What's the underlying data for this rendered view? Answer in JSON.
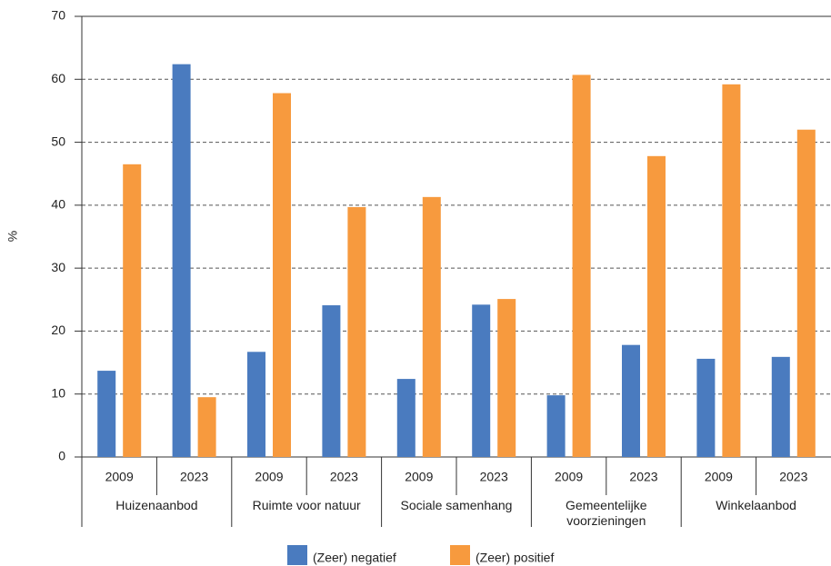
{
  "chart_data": {
    "type": "grouped_bar",
    "y_label": "%",
    "categories": [
      "2009",
      "2023",
      "2009",
      "2023",
      "2009",
      "2023",
      "2009",
      "2023",
      "2009",
      "2023"
    ],
    "groups": [
      "Huizenaanbod",
      "Ruimte voor natuur",
      "Sociale samenhang",
      "Gemeentelijke voorzieningen",
      "Winkelaanbod"
    ],
    "series": [
      {
        "name": "(Zeer) negatief",
        "color": "#4a7bbf",
        "values": [
          13.7,
          62.4,
          16.7,
          24.1,
          12.4,
          24.2,
          9.8,
          17.8,
          15.6,
          15.9
        ]
      },
      {
        "name": "(Zeer) positief",
        "color": "#f79a3e",
        "values": [
          46.5,
          9.5,
          57.8,
          39.7,
          41.3,
          25.1,
          60.7,
          47.8,
          59.2,
          52.0
        ]
      }
    ],
    "ylim": [
      0,
      70
    ],
    "yticks": [
      0,
      10,
      20,
      30,
      40,
      50,
      60,
      70
    ],
    "grid": true
  }
}
